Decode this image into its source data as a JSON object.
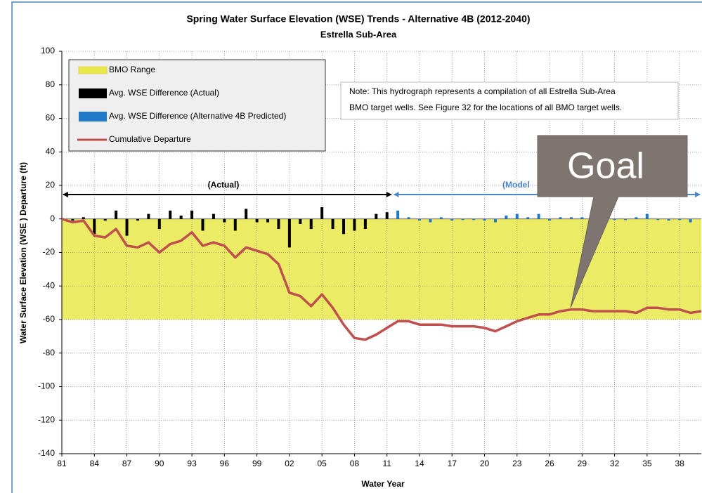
{
  "chart_data": {
    "type": "combo",
    "title": "Spring Water Surface Elevation (WSE) Trends - Alternative 4B (2012-2040)",
    "subtitle": "Estrella Sub-Area",
    "xlabel": "Water Year",
    "ylabel": "Water Surface Elevation (WSE ) Departure (ft)",
    "note": [
      "Note:  This hydrograph represents a compilation of all Estrella Sub-Area",
      "BMO target wells.  See Figure 32 for the locations of all BMO target wells."
    ],
    "annotations": [
      "(Actual)",
      "(Model",
      "Goal"
    ],
    "grid": true,
    "legend": "upper left",
    "xlim": [
      1981,
      2040
    ],
    "ylim": [
      -140,
      100
    ],
    "yticks": [
      -140,
      -120,
      -100,
      -80,
      -60,
      -40,
      -20,
      0,
      20,
      40,
      60,
      80,
      100
    ],
    "xticks": [
      {
        "value": 1981,
        "label": "81"
      },
      {
        "value": 1984,
        "label": "84"
      },
      {
        "value": 1987,
        "label": "87"
      },
      {
        "value": 1990,
        "label": "90"
      },
      {
        "value": 1993,
        "label": "93"
      },
      {
        "value": 1996,
        "label": "96"
      },
      {
        "value": 1999,
        "label": "99"
      },
      {
        "value": 2002,
        "label": "02"
      },
      {
        "value": 2005,
        "label": "05"
      },
      {
        "value": 2008,
        "label": "08"
      },
      {
        "value": 2011,
        "label": "11"
      },
      {
        "value": 2014,
        "label": "14"
      },
      {
        "value": 2017,
        "label": "17"
      },
      {
        "value": 2020,
        "label": "20"
      },
      {
        "value": 2023,
        "label": "23"
      },
      {
        "value": 2026,
        "label": "26"
      },
      {
        "value": 2029,
        "label": "29"
      },
      {
        "value": 2032,
        "label": "32"
      },
      {
        "value": 2035,
        "label": "35"
      },
      {
        "value": 2038,
        "label": "38"
      }
    ],
    "x": [
      1981,
      1982,
      1983,
      1984,
      1985,
      1986,
      1987,
      1988,
      1989,
      1990,
      1991,
      1992,
      1993,
      1994,
      1995,
      1996,
      1997,
      1998,
      1999,
      2000,
      2001,
      2002,
      2003,
      2004,
      2005,
      2006,
      2007,
      2008,
      2009,
      2010,
      2011,
      2012,
      2013,
      2014,
      2015,
      2016,
      2017,
      2018,
      2019,
      2020,
      2021,
      2022,
      2023,
      2024,
      2025,
      2026,
      2027,
      2028,
      2029,
      2030,
      2031,
      2032,
      2033,
      2034,
      2035,
      2036,
      2037,
      2038,
      2039,
      2040
    ],
    "series": [
      {
        "name": "BMO Range",
        "type": "band",
        "color": "#e8e84a",
        "range": [
          -60,
          0
        ]
      },
      {
        "name": "Avg. WSE Difference (Actual)",
        "type": "bar",
        "color": "#000000",
        "values": [
          null,
          -1,
          1,
          -9,
          -1,
          5,
          -10,
          -1,
          3,
          -6,
          5,
          2,
          5,
          -7,
          3,
          -2,
          -7,
          6,
          -2,
          -2,
          -6,
          -17,
          -3,
          -6,
          7,
          -6,
          -9,
          -7,
          -6,
          3,
          4,
          null,
          null,
          null,
          null,
          null,
          null,
          null,
          null,
          null,
          null,
          null,
          null,
          null,
          null,
          null,
          null,
          null,
          null,
          null,
          null,
          null,
          null,
          null,
          null,
          null,
          null,
          null,
          null,
          null
        ]
      },
      {
        "name": "Avg. WSE Difference (Alternative 4B Predicted)",
        "type": "bar",
        "color": "#1f78c8",
        "values": [
          null,
          null,
          null,
          null,
          null,
          null,
          null,
          null,
          null,
          null,
          null,
          null,
          null,
          null,
          null,
          null,
          null,
          null,
          null,
          null,
          null,
          null,
          null,
          null,
          null,
          null,
          null,
          null,
          null,
          null,
          null,
          5,
          1,
          -1,
          -2,
          1,
          -1,
          0,
          0,
          -1,
          -2,
          2,
          3,
          1,
          3,
          -1,
          1,
          1,
          1,
          0,
          1,
          0,
          0,
          1,
          3,
          0,
          -1,
          0,
          -2,
          null
        ]
      },
      {
        "name": "Cumulative Departure",
        "type": "line",
        "color": "#c0504d",
        "values": [
          0,
          -2,
          -1,
          -10,
          -11,
          -6,
          -16,
          -17,
          -14,
          -20,
          -15,
          -13,
          -8,
          -16,
          -14,
          -16,
          -23,
          -17,
          -19,
          -21,
          -27,
          -44,
          -46,
          -52,
          -45,
          -53,
          -63,
          -71,
          -72,
          -69,
          -65,
          -61,
          -61,
          -63,
          -63,
          -63,
          -64,
          -64,
          -64,
          -65,
          -67,
          -64,
          -61,
          -59,
          -57,
          -57,
          -55,
          -54,
          -54,
          -55,
          -55,
          -55,
          -55,
          -56,
          -53,
          -53,
          -54,
          -54,
          -56,
          -55
        ]
      }
    ]
  }
}
